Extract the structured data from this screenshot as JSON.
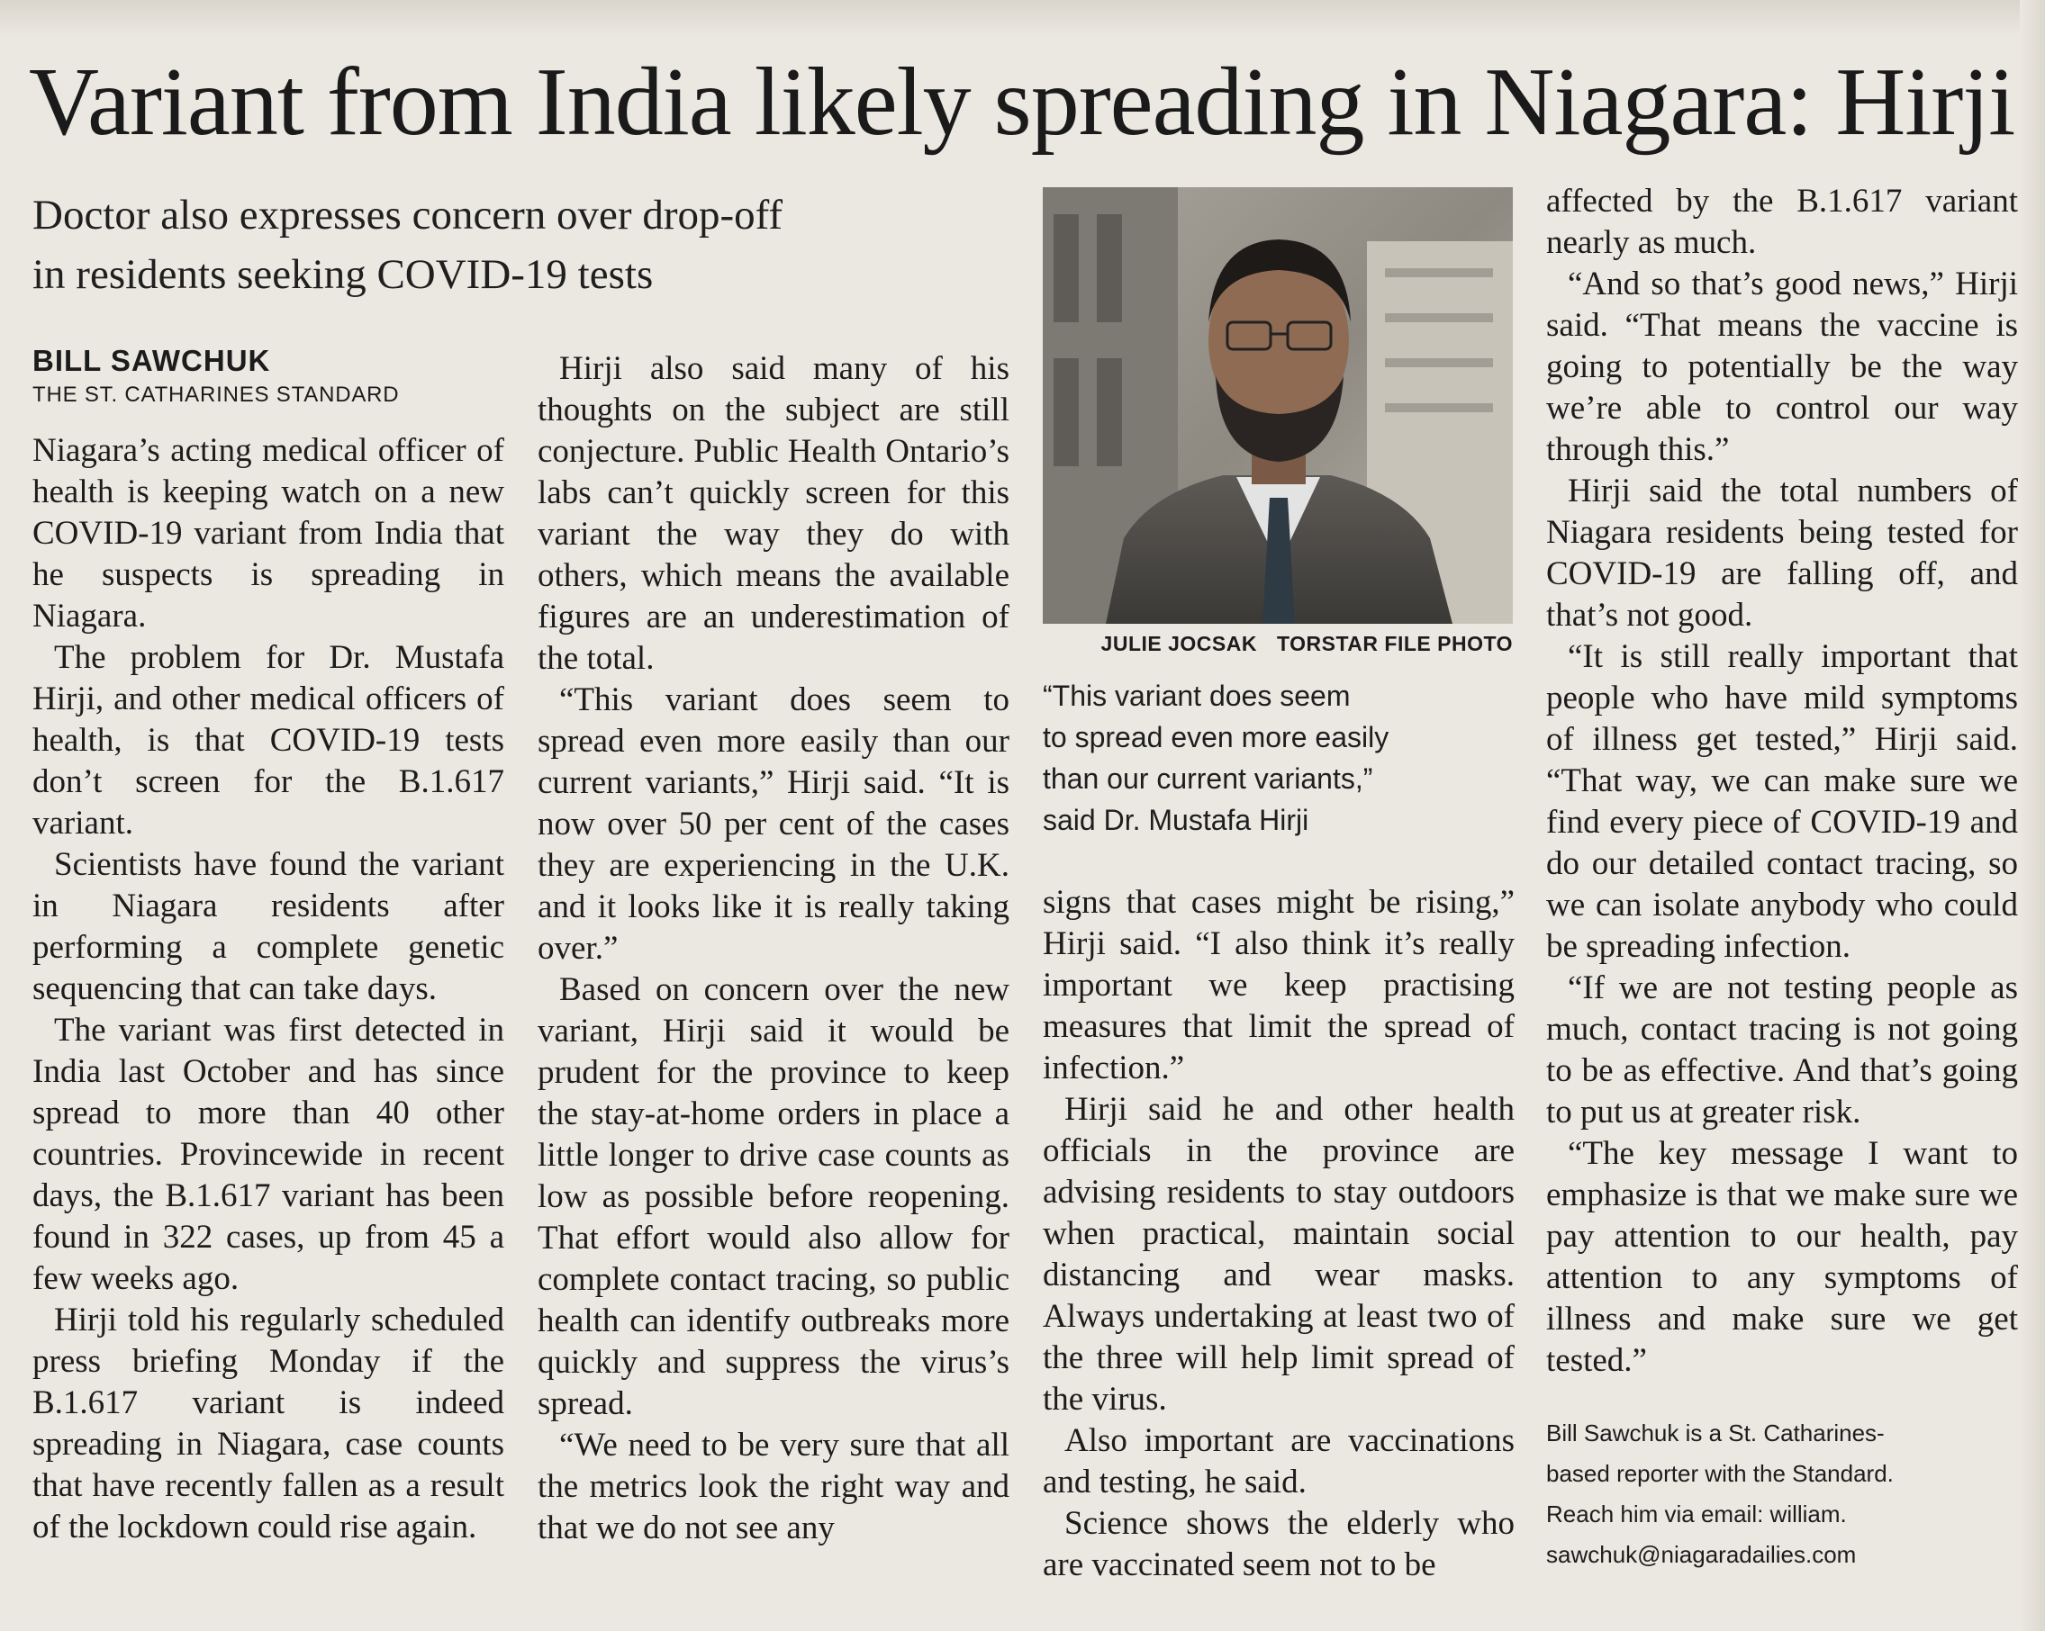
{
  "headline": "Variant from India likely spreading in Niagara: Hirji",
  "deck": [
    "Doctor also expresses concern over drop-off",
    "in residents seeking COVID-19 tests"
  ],
  "byline": {
    "name": "BILL SAWCHUK",
    "organization": "THE ST. CATHARINES STANDARD"
  },
  "column1": [
    "Niagara’s acting medical officer of health is keeping watch on a new COVID-19 variant from India that he suspects is spreading in Niagara.",
    "The problem for Dr. Mustafa Hirji, and other medical officers of health, is that COVID-19 tests don’t screen for the B.1.617 variant.",
    "Scientists have found the variant in Niagara residents after performing a complete genetic sequencing that can take days.",
    "The variant was first detected in India last October and has since spread to more than 40 other countries. Provincewide in recent days, the B.1.617 variant has been found in 322 cases, up from 45 a few weeks ago.",
    "Hirji told his regularly scheduled press briefing Monday if the B.1.617 variant is indeed spreading in Niagara, case counts that have recently fallen as a result of the lockdown could rise again."
  ],
  "column2": [
    "Hirji also said many of his thoughts on the subject are still conjecture. Public Health Ontario’s labs can’t quickly screen for this variant the way they do with others, which means the available figures are an underestimation of the total.",
    "“This variant does seem to spread even more easily than our current variants,” Hirji said. “It is now over 50 per cent of the cases they are experiencing in the U.K. and it looks like it is really taking over.”",
    "Based on concern over the new variant, Hirji said it would be prudent for the province to keep the stay-at-home orders in place a little longer to drive case counts as low as possible before reopening. That effort would also allow for complete contact tracing, so public health can identify outbreaks more quickly and suppress the virus’s spread.",
    "“We need to be very sure that all the metrics look the right way and that we do not see any"
  ],
  "photo_credit": {
    "photographer": "JULIE JOCSAK",
    "source": "TORSTAR FILE PHOTO"
  },
  "pull_quote": [
    "“This variant does seem",
    "to spread even more easily",
    "than our current variants,”",
    "said Dr. Mustafa Hirji"
  ],
  "column3": [
    "signs that cases might be rising,” Hirji said. “I also think it’s really important we keep practising measures that limit the spread of infection.”",
    "Hirji said he and other health officials in the province are advising residents to stay outdoors when practical, maintain social distancing and wear masks. Always undertaking at least two of the three will help limit spread of the virus.",
    "Also important are vaccinations and testing, he said.",
    "Science shows the elderly who are vaccinated seem not to be"
  ],
  "column4": [
    "affected by the B.1.617 variant nearly as much.",
    "“And so that’s good news,” Hirji said. “That means the vaccine is going to potentially be the way we’re able to control our way through this.”",
    "Hirji said the total numbers of Niagara residents being tested for COVID-19 are falling off, and that’s not good.",
    "“It is still really important that people who have mild symptoms of illness get tested,” Hirji said. “That way, we can make sure we find every piece of COVID-19 and do our detailed contact tracing, so we can isolate anybody who could be spreading infection.",
    "“If we are not testing people as much, contact tracing is not going to be as effective. And that’s going to put us at greater risk.",
    "“The key message I want to emphasize is that we make sure we pay attention to our health, pay attention to any symptoms of illness and make sure we get tested.”"
  ],
  "author_bio": [
    "Bill Sawchuk is a St. Catharines-",
    "based reporter with the Standard.",
    "Reach him via email: william.",
    "sawchuk@niagaradailies.com"
  ]
}
